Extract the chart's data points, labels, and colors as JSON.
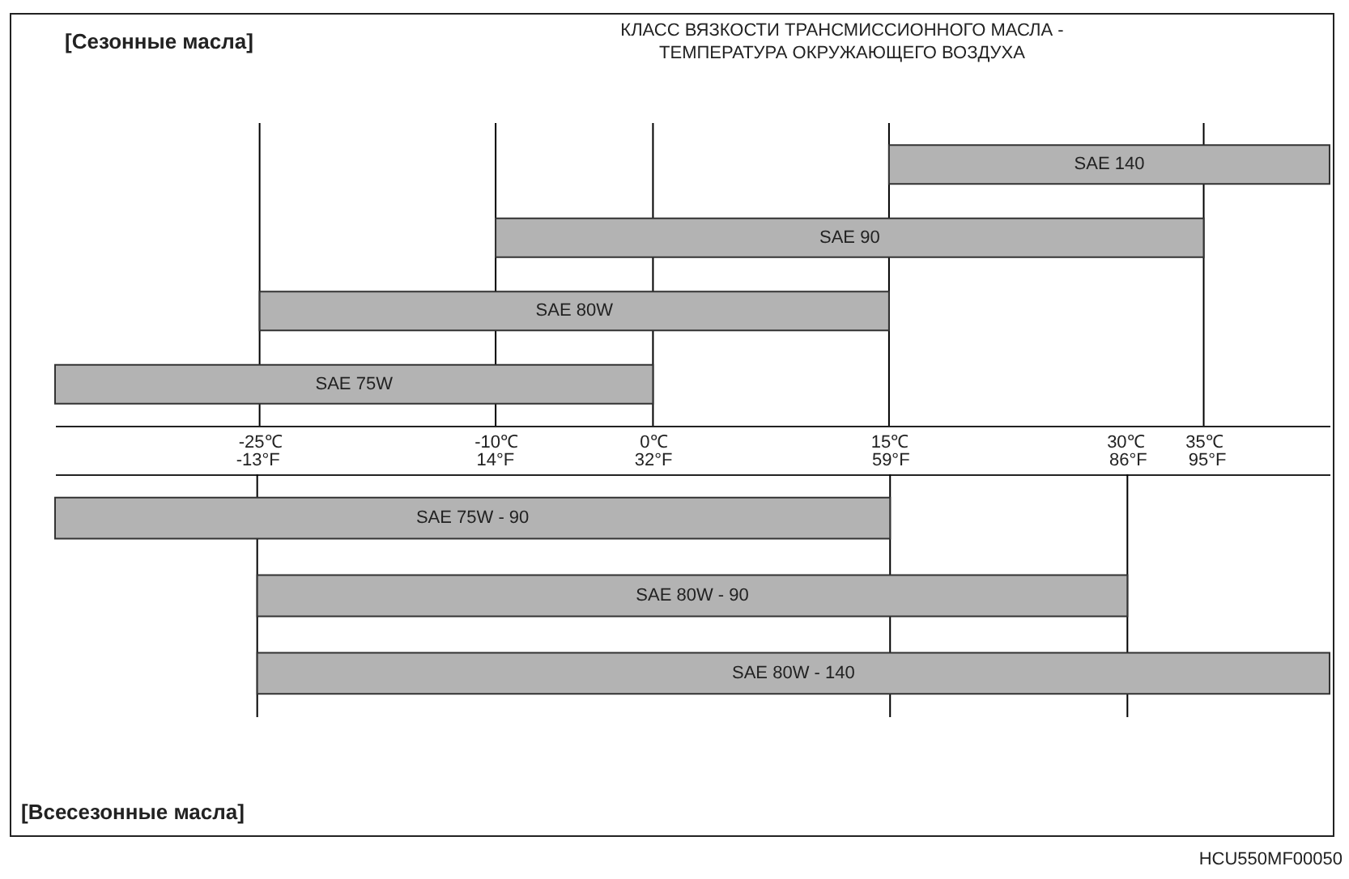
{
  "chart_data": [
    {
      "type": "bar",
      "orientation": "horizontal",
      "title": "[Сезонные масла]",
      "subtitle": "КЛАСС ВЯЗКОСТИ ТРАНСМИССИОННОГО МАСЛА - ТЕМПЕРАТУРА ОКРУЖАЮЩЕГО ВОЗДУХА",
      "categories": [
        "SAE 140",
        "SAE 90",
        "SAE 80W",
        "SAE 75W"
      ],
      "series": [
        {
          "color": "#b3b3b3",
          "base": [
            15,
            -10,
            -25,
            -38
          ],
          "values": [
            28,
            45,
            40,
            38
          ]
        }
      ],
      "xlim": [
        -38,
        43
      ],
      "xticks": [
        {
          "value": -25,
          "label": "-25℃"
        },
        {
          "value": -10,
          "label": "-10℃"
        },
        {
          "value": 0,
          "label": "0℃"
        },
        {
          "value": 15,
          "label": "15℃"
        },
        {
          "value": 30,
          "label": "30℃"
        },
        {
          "value": 35,
          "label": "35℃"
        }
      ],
      "ref_lines": [
        {
          "axis": "x",
          "value": -25,
          "color": "#000000"
        },
        {
          "axis": "x",
          "value": -10,
          "color": "#000000"
        },
        {
          "axis": "x",
          "value": 0,
          "color": "#000000"
        },
        {
          "axis": "x",
          "value": 15,
          "color": "#000000"
        },
        {
          "axis": "x",
          "value": 35,
          "color": "#000000"
        }
      ],
      "grid": false
    },
    {
      "type": "bar",
      "orientation": "horizontal",
      "title": "[Всесезонные масла]",
      "annotations": [
        "HCU550MF00050"
      ],
      "categories": [
        "SAE 75W - 90",
        "SAE 80W - 90",
        "SAE 80W - 140"
      ],
      "series": [
        {
          "color": "#b3b3b3",
          "base": [
            -36,
            -13,
            -13
          ],
          "values": [
            95,
            99,
            122
          ]
        }
      ],
      "xlim": [
        -36,
        109
      ],
      "xticks": [
        {
          "value": -13,
          "label": "-13°F"
        },
        {
          "value": 14,
          "label": "14°F"
        },
        {
          "value": 32,
          "label": "32°F"
        },
        {
          "value": 59,
          "label": "59°F"
        },
        {
          "value": 86,
          "label": "86°F"
        },
        {
          "value": 95,
          "label": "95°F"
        }
      ],
      "ref_lines": [
        {
          "axis": "x",
          "value": -13,
          "color": "#000000"
        },
        {
          "axis": "x",
          "value": 59,
          "color": "#000000"
        },
        {
          "axis": "x",
          "value": 86,
          "color": "#000000"
        }
      ],
      "grid": false
    }
  ]
}
